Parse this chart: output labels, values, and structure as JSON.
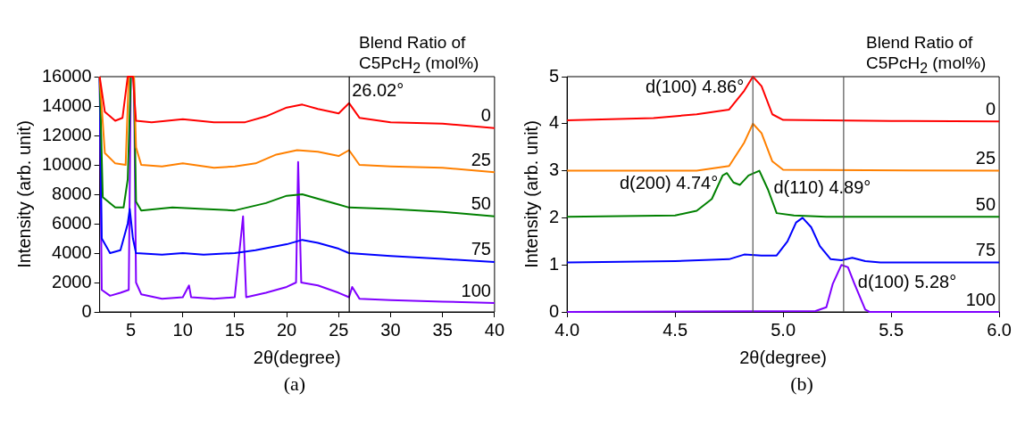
{
  "chart_data": [
    {
      "type": "line",
      "xlabel": "2θ(degree)",
      "ylabel": "Intensity (arb. unit)",
      "legend_title": "Blend Ratio of C5PcH$_{2}$ (mol%)",
      "xlim": [
        2,
        40
      ],
      "xticks": [
        5,
        10,
        15,
        20,
        25,
        30,
        35,
        40
      ],
      "ylim": [
        0,
        16000
      ],
      "yticks": [
        0,
        2000,
        4000,
        6000,
        8000,
        10000,
        12000,
        14000,
        16000
      ],
      "series": [
        {
          "name": "0",
          "color": "#ff0000",
          "x": [
            2,
            2.5,
            3.5,
            4.2,
            4.7,
            5.2,
            5.5,
            7,
            10,
            13,
            16,
            18,
            20,
            21.5,
            23,
            25,
            26,
            27,
            30,
            35,
            40
          ],
          "values": [
            16000,
            13600,
            13000,
            13200,
            16000,
            16000,
            13000,
            12900,
            13100,
            12900,
            12900,
            13300,
            13900,
            14100,
            13800,
            13500,
            14200,
            13200,
            12900,
            12800,
            12500
          ]
        },
        {
          "name": "25",
          "color": "#ff8000",
          "x": [
            2,
            2.5,
            3.5,
            4.5,
            4.8,
            5.3,
            5.5,
            6,
            8,
            10,
            13,
            15,
            17,
            19,
            21,
            23,
            25,
            26,
            27,
            30,
            35,
            40
          ],
          "values": [
            16000,
            10800,
            10100,
            10000,
            16000,
            16000,
            11200,
            10000,
            9900,
            10100,
            9800,
            9900,
            10100,
            10700,
            11000,
            10900,
            10600,
            11000,
            10000,
            9900,
            9800,
            9500
          ]
        },
        {
          "name": "50",
          "color": "#008000",
          "x": [
            2,
            2.3,
            3.5,
            4.3,
            4.7,
            5,
            5.3,
            5.5,
            6,
            9,
            12,
            15,
            18,
            20,
            21.5,
            23,
            25,
            26,
            30,
            35,
            40
          ],
          "values": [
            16000,
            7800,
            7100,
            7100,
            9000,
            16000,
            16000,
            7500,
            6900,
            7100,
            7000,
            6900,
            7400,
            7900,
            8000,
            7700,
            7300,
            7100,
            7000,
            6800,
            6500
          ]
        },
        {
          "name": "75",
          "color": "#0000ff",
          "x": [
            2,
            2.2,
            3,
            4,
            4.7,
            4.9,
            5.2,
            5.5,
            8,
            10,
            12,
            15,
            17,
            20,
            21.5,
            23,
            25,
            26,
            30,
            35,
            40
          ],
          "values": [
            16000,
            5000,
            4000,
            4200,
            6000,
            7000,
            5000,
            4000,
            3900,
            4000,
            3900,
            4000,
            4200,
            4600,
            4900,
            4700,
            4300,
            4000,
            3800,
            3600,
            3400
          ]
        },
        {
          "name": "100",
          "color": "#8000ff",
          "x": [
            2,
            2.2,
            3,
            4,
            4.8,
            5,
            5.3,
            5.5,
            6,
            8,
            10,
            10.6,
            10.8,
            13,
            15,
            15.8,
            16.1,
            18,
            20,
            20.9,
            21.1,
            21.4,
            23,
            25,
            26,
            26.3,
            27,
            30,
            35,
            40
          ],
          "values": [
            16000,
            1500,
            1100,
            1300,
            1500,
            16000,
            16000,
            2000,
            1200,
            900,
            1000,
            1800,
            1000,
            900,
            1000,
            6500,
            1000,
            1300,
            1700,
            2000,
            10200,
            2000,
            1800,
            1300,
            1000,
            1700,
            900,
            800,
            700,
            600
          ]
        }
      ],
      "ref_lines": [
        {
          "axis": "x",
          "value": 26.02,
          "label": "26.02°",
          "color": "#000000"
        }
      ],
      "annotations": [
        "(a)"
      ]
    },
    {
      "type": "line",
      "xlabel": "2θ(degree)",
      "ylabel": "Intensity (arb. unit)",
      "legend_title": "Blend Ratio of C5PcH$_{2}$ (mol%)",
      "xlim": [
        4,
        6
      ],
      "xticks": [
        {
          "value": 4,
          "label": "4.0"
        },
        4.5,
        {
          "value": 5,
          "label": "5.0"
        },
        5.5,
        {
          "value": 6,
          "label": "6.0"
        }
      ],
      "ylim": [
        0,
        5
      ],
      "yticks": [
        0,
        1,
        2,
        3,
        4,
        5
      ],
      "series": [
        {
          "name": "0",
          "color": "#ff0000",
          "x": [
            4,
            4.4,
            4.6,
            4.75,
            4.82,
            4.86,
            4.9,
            4.95,
            5,
            5.5,
            6
          ],
          "values": [
            4.07,
            4.12,
            4.2,
            4.3,
            4.7,
            5,
            4.8,
            4.2,
            4.08,
            4.06,
            4.05
          ]
        },
        {
          "name": "25",
          "color": "#ff8000",
          "x": [
            4,
            4.6,
            4.75,
            4.82,
            4.86,
            4.9,
            4.95,
            5,
            6
          ],
          "values": [
            3,
            3,
            3.1,
            3.6,
            4,
            3.8,
            3.2,
            3.02,
            3
          ]
        },
        {
          "name": "50",
          "color": "#008000",
          "x": [
            4,
            4.5,
            4.6,
            4.67,
            4.72,
            4.74,
            4.77,
            4.8,
            4.84,
            4.89,
            4.93,
            4.97,
            5.05,
            5.2,
            6
          ],
          "values": [
            2.02,
            2.05,
            2.15,
            2.4,
            2.9,
            2.95,
            2.75,
            2.7,
            2.9,
            3,
            2.6,
            2.1,
            2.05,
            2.02,
            2.02
          ]
        },
        {
          "name": "75",
          "color": "#0000ff",
          "x": [
            4,
            4.5,
            4.75,
            4.82,
            4.9,
            4.97,
            5.02,
            5.06,
            5.09,
            5.13,
            5.17,
            5.22,
            5.27,
            5.32,
            5.38,
            5.45,
            6
          ],
          "values": [
            1.05,
            1.08,
            1.12,
            1.22,
            1.2,
            1.2,
            1.5,
            1.9,
            2,
            1.8,
            1.4,
            1.12,
            1.1,
            1.15,
            1.08,
            1.05,
            1.05
          ]
        },
        {
          "name": "100",
          "color": "#8000ff",
          "x": [
            4,
            5.15,
            5.2,
            5.23,
            5.27,
            5.3,
            5.33,
            5.38,
            5.4,
            6
          ],
          "values": [
            0,
            0.02,
            0.1,
            0.6,
            1,
            0.95,
            0.6,
            0.05,
            0,
            0
          ]
        }
      ],
      "ref_lines": [
        {
          "axis": "x",
          "value": 4.86,
          "color": "#555555"
        },
        {
          "axis": "x",
          "value": 5.28,
          "color": "#555555"
        }
      ],
      "annotations": [
        {
          "text": "d(100) 4.86°",
          "x": 4.86,
          "y": 5
        },
        {
          "text": "d(200) 4.74°",
          "x": 4.74,
          "y": 2.95
        },
        {
          "text": "d(110) 4.89°",
          "x": 4.89,
          "y": 3
        },
        {
          "text": "d(100) 5.28°",
          "x": 5.28,
          "y": 1
        },
        "(b)"
      ]
    }
  ]
}
